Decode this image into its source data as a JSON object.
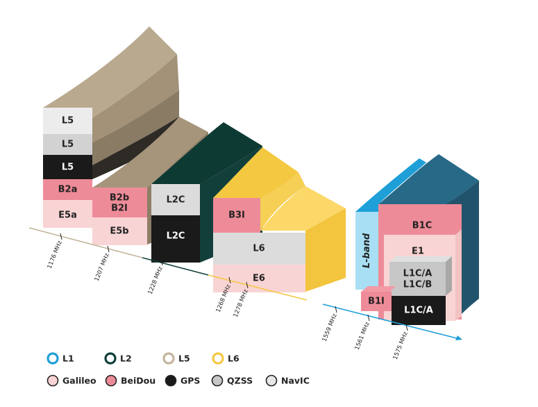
{
  "colors": {
    "l1": "#1e9fd8",
    "l2": "#123f3a",
    "l5": "#c4b49c",
    "l6": "#f5c842",
    "galileo": "#f9d4d4",
    "beidou": "#ee8b98",
    "gps": "#1a1a1a",
    "qzss": "#c7c7c7",
    "navic": "#e7e7e7"
  },
  "blocks": {
    "l5_navic": "L5",
    "l5_qzss": "L5",
    "l5_gps": "L5",
    "b2a": "B2a",
    "e5a": "E5a",
    "b2b_line1": "B2b",
    "b2b_line2": "B2I",
    "e5b": "E5b",
    "l2c_qzss": "L2C",
    "l2c_gps": "L2C",
    "b3i": "B3I",
    "l6": "L6",
    "e6": "E6",
    "lband": "L-band",
    "b1c": "B1C",
    "e1": "E1",
    "l1c_line1": "L1C/A",
    "l1c_line2": "L1C/B",
    "b1i": "B1I",
    "l1ca": "L1C/A"
  },
  "frequencies": [
    {
      "id": "f1176",
      "label": "1176 MHz"
    },
    {
      "id": "f1207",
      "label": "1207 MHz"
    },
    {
      "id": "f1228",
      "label": "1228 MHz"
    },
    {
      "id": "f1268",
      "label": "1268 MHz"
    },
    {
      "id": "f1278",
      "label": "1278 MHz"
    },
    {
      "id": "f1559",
      "label": "1559 MHz"
    },
    {
      "id": "f1561",
      "label": "1561 MHz"
    },
    {
      "id": "f1575",
      "label": "1575 MHz"
    }
  ],
  "legend": {
    "bands": [
      {
        "label": "L1",
        "color": "#1e9fd8"
      },
      {
        "label": "L2",
        "color": "#123f3a"
      },
      {
        "label": "L5",
        "color": "#c4b49c"
      },
      {
        "label": "L6",
        "color": "#f5c842"
      }
    ],
    "systems": [
      {
        "label": "Galileo",
        "color": "#f9d4d4"
      },
      {
        "label": "BeiDou",
        "color": "#ee8b98"
      },
      {
        "label": "GPS",
        "color": "#1a1a1a"
      },
      {
        "label": "QZSS",
        "color": "#c7c7c7"
      },
      {
        "label": "NavIC",
        "color": "#e7e7e7"
      }
    ]
  }
}
